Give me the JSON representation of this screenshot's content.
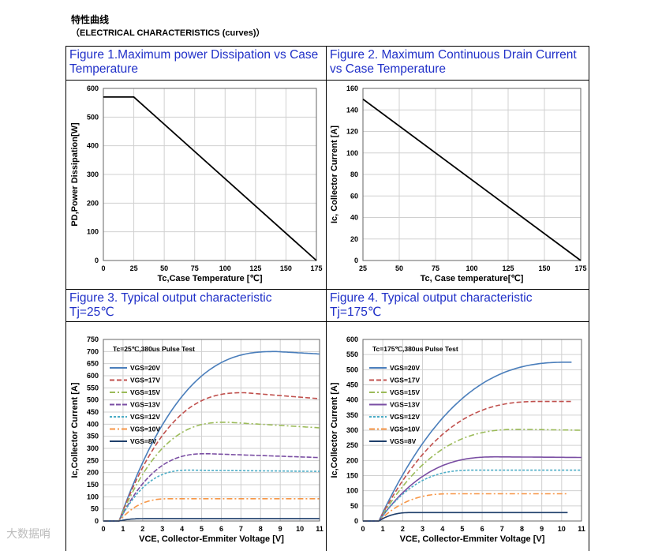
{
  "header": {
    "title_cn": "特性曲线",
    "title_en": "（ELECTRICAL CHARACTERISTICS (curves)）"
  },
  "watermark": "大数据哨",
  "cells": [
    {
      "title": "Figure 1.Maximum power Dissipation vs Case Temperature"
    },
    {
      "title": "Figure 2. Maximum Continuous Drain Current vs Case Temperature"
    },
    {
      "title": "Figure 3. Typical output characteristic Tj=25℃"
    },
    {
      "title": "Figure 4. Typical output characteristic Tj=175℃"
    }
  ],
  "chart_data": [
    {
      "type": "line",
      "xlabel": "Tc,Case Temperature [℃]",
      "ylabel": "PD,Power Dissipation[W]",
      "xlim": [
        0,
        175
      ],
      "ylim": [
        0,
        600
      ],
      "xticks": [
        0,
        25,
        50,
        75,
        100,
        125,
        150,
        175
      ],
      "yticks": [
        0,
        100,
        200,
        300,
        400,
        500,
        600
      ],
      "grid": true,
      "series": [
        {
          "values": [
            [
              0,
              570
            ],
            [
              25,
              570
            ],
            [
              175,
              0
            ]
          ],
          "color": "#000000"
        }
      ]
    },
    {
      "type": "line",
      "xlabel": "Tc, Case temperature[℃]",
      "ylabel": "Ic, Collector Current [A]",
      "xlim": [
        25,
        175
      ],
      "ylim": [
        0,
        160
      ],
      "xticks": [
        25,
        50,
        75,
        100,
        125,
        150,
        175
      ],
      "yticks": [
        0,
        20,
        40,
        60,
        80,
        100,
        120,
        140,
        160
      ],
      "grid": true,
      "series": [
        {
          "values": [
            [
              25,
              150
            ],
            [
              175,
              0
            ]
          ],
          "color": "#000000"
        }
      ]
    },
    {
      "type": "line",
      "annotation": "Tc=25℃,380us Pulse Test",
      "xlabel": "VCE, Collector-Emmiter Voltage [V]",
      "ylabel": "Ic,Collector Current [A]",
      "xlim": [
        0,
        11
      ],
      "ylim": [
        0,
        750
      ],
      "xticks": [
        0,
        1,
        2,
        3,
        4,
        5,
        6,
        7,
        8,
        9,
        10,
        11
      ],
      "yticks": [
        0,
        50,
        100,
        150,
        200,
        250,
        300,
        350,
        400,
        450,
        500,
        550,
        600,
        650,
        700,
        750
      ],
      "grid": true,
      "legend": "top-left",
      "series": [
        {
          "name": "VGS=20V",
          "color": "#4a7ebb",
          "dash": "solid",
          "knee": 8.8,
          "peak": 700,
          "end": 690
        },
        {
          "name": "VGS=17V",
          "color": "#c0504d",
          "dash": "6,3",
          "knee": 7.2,
          "peak": 530,
          "end": 505
        },
        {
          "name": "VGS=15V",
          "color": "#9bbb59",
          "dash": "7,3,2,3",
          "knee": 6.3,
          "peak": 408,
          "end": 385
        },
        {
          "name": "VGS=13V",
          "color": "#7a4ea3",
          "dash": "6,2",
          "knee": 5.3,
          "peak": 278,
          "end": 262
        },
        {
          "name": "VGS=12V",
          "color": "#4bacc6",
          "dash": "3,2",
          "knee": 4.4,
          "peak": 210,
          "end": 205
        },
        {
          "name": "VGS=10V",
          "color": "#f79646",
          "dash": "7,3,2,3",
          "knee": 3.4,
          "peak": 92,
          "end": 92
        },
        {
          "name": "VGS=8V",
          "color": "#1f3f6b",
          "dash": "solid",
          "knee": 2.2,
          "peak": 10,
          "end": 10
        }
      ]
    },
    {
      "type": "line",
      "annotation": "Tc=175℃,380us Pulse Test",
      "xlabel": "VCE, Collector-Emmiter Voltage [V]",
      "ylabel": "Ic,Collector Current [A]",
      "xlim": [
        0,
        11
      ],
      "ylim": [
        0,
        600
      ],
      "xticks": [
        0,
        1,
        2,
        3,
        4,
        5,
        6,
        7,
        8,
        9,
        10,
        11
      ],
      "yticks": [
        0,
        50,
        100,
        150,
        200,
        250,
        300,
        350,
        400,
        450,
        500,
        550,
        600
      ],
      "grid": true,
      "legend": "top-left",
      "series": [
        {
          "name": "VGS=20V",
          "color": "#4a7ebb",
          "dash": "solid",
          "knee": 10.5,
          "peak": 525,
          "end": 525
        },
        {
          "name": "VGS=17V",
          "color": "#c0504d",
          "dash": "6,3",
          "knee": 9.0,
          "peak": 395,
          "end": 395
        },
        {
          "name": "VGS=15V",
          "color": "#9bbb59",
          "dash": "7,3,2,3",
          "knee": 8.0,
          "peak": 303,
          "end": 300
        },
        {
          "name": "VGS=13V",
          "color": "#7a4ea3",
          "dash": "solid",
          "knee": 6.8,
          "peak": 212,
          "end": 210
        },
        {
          "name": "VGS=12V",
          "color": "#4bacc6",
          "dash": "3,2",
          "knee": 5.6,
          "peak": 168,
          "end": 168
        },
        {
          "name": "VGS=10V",
          "color": "#f79646",
          "dash": "7,3,2,3",
          "knee": 4.5,
          "peak": 90,
          "end": 90
        },
        {
          "name": "VGS=8V",
          "color": "#1f3f6b",
          "dash": "solid",
          "knee": 2.5,
          "peak": 28,
          "end": 28
        }
      ]
    }
  ]
}
